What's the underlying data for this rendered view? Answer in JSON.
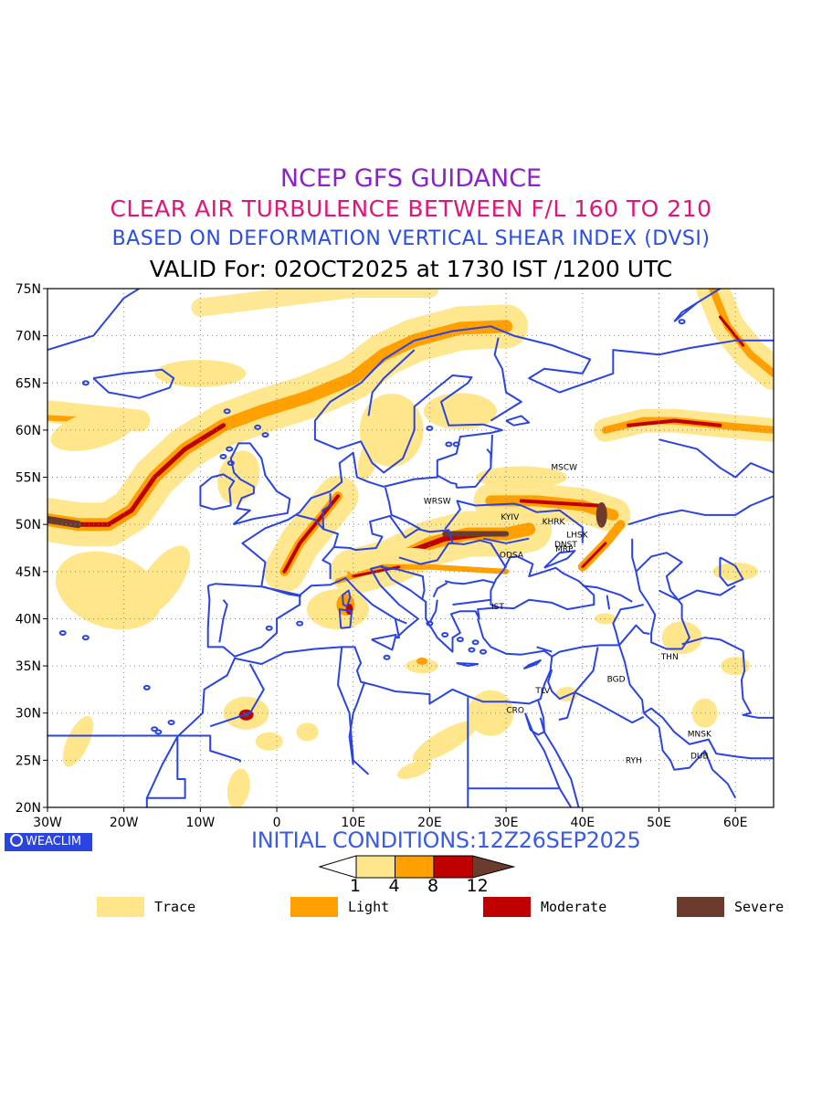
{
  "header": {
    "line1": "NCEP GFS GUIDANCE",
    "line2": "CLEAR AIR TURBULENCE BETWEEN F/L 160 TO 210",
    "line3": "BASED ON DEFORMATION VERTICAL SHEAR INDEX (DVSI)",
    "line4": "VALID For: 02OCT2025 at 1730 IST /1200 UTC",
    "colors": {
      "line1": "#8a22c8",
      "line2": "#e0157a",
      "line3": "#2a4fe0",
      "line4": "#000000"
    }
  },
  "map": {
    "lat_ticks": [
      "75N",
      "70N",
      "65N",
      "60N",
      "55N",
      "50N",
      "45N",
      "40N",
      "35N",
      "30N",
      "25N",
      "20N"
    ],
    "lon_ticks": [
      "30W",
      "20W",
      "10W",
      "0",
      "10E",
      "20E",
      "30E",
      "40E",
      "50E",
      "60E"
    ],
    "lat_range": [
      20,
      75
    ],
    "lon_range": [
      -30,
      65
    ],
    "grid": "dotted",
    "coastline_color": "#2a44e0",
    "cities": [
      {
        "name": "MSCW",
        "lon": 37.6,
        "lat": 55.8
      },
      {
        "name": "WRSW",
        "lon": 21.0,
        "lat": 52.2
      },
      {
        "name": "KYIV",
        "lon": 30.5,
        "lat": 50.5
      },
      {
        "name": "KHRK",
        "lon": 36.2,
        "lat": 50.0
      },
      {
        "name": "LHSK",
        "lon": 39.3,
        "lat": 48.6
      },
      {
        "name": "DNST",
        "lon": 37.8,
        "lat": 47.6
      },
      {
        "name": "MRP",
        "lon": 37.6,
        "lat": 47.1
      },
      {
        "name": "ODSA",
        "lon": 30.7,
        "lat": 46.5
      },
      {
        "name": "IST",
        "lon": 28.9,
        "lat": 41.0
      },
      {
        "name": "THN",
        "lon": 51.4,
        "lat": 35.7
      },
      {
        "name": "BGD",
        "lon": 44.4,
        "lat": 33.3
      },
      {
        "name": "TLV",
        "lon": 34.8,
        "lat": 32.1
      },
      {
        "name": "CRO",
        "lon": 31.2,
        "lat": 30.0
      },
      {
        "name": "MNSK",
        "lon": 55.3,
        "lat": 27.5
      },
      {
        "name": "RYH",
        "lon": 46.7,
        "lat": 24.7
      },
      {
        "name": "DUB",
        "lon": 55.3,
        "lat": 25.2
      }
    ]
  },
  "brand": {
    "label": "WEACLIM"
  },
  "initial_conditions": {
    "text": "INITIAL CONDITIONS:12Z26SEP2025",
    "color": "#3a5be6"
  },
  "colorbar": {
    "ticks": [
      "1",
      "4",
      "8",
      "12"
    ],
    "colors": [
      "#ffffff",
      "#ffe68a",
      "#ffa000",
      "#c00000",
      "#6b3b2e"
    ]
  },
  "legend": [
    {
      "label": "Trace",
      "color": "#ffe68a"
    },
    {
      "label": "Light",
      "color": "#ffa000"
    },
    {
      "label": "Moderate",
      "color": "#c00000"
    },
    {
      "label": "Severe",
      "color": "#6b3b2e"
    }
  ]
}
